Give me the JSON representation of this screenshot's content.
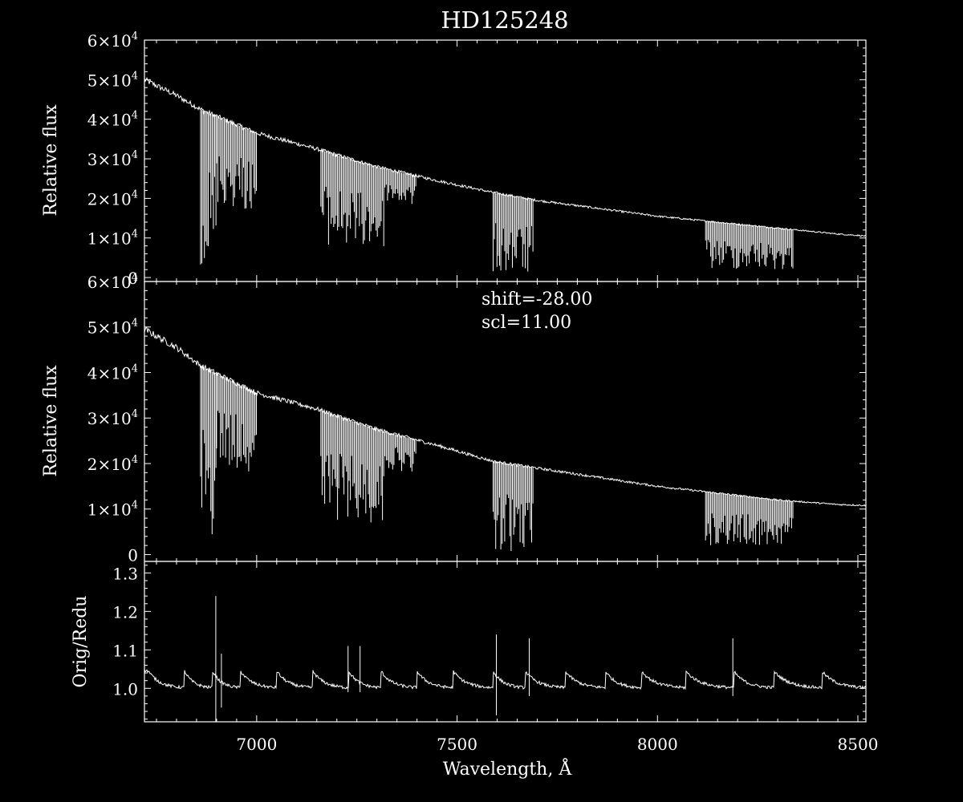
{
  "chart_data": [
    {
      "type": "line",
      "panel": "top",
      "title": "HD125248",
      "ylabel": "Relative flux",
      "xlim": [
        6720,
        8520
      ],
      "ylim": [
        -1000,
        60000
      ],
      "yticks": [
        {
          "value": 0,
          "base": "0",
          "exp": ""
        },
        {
          "value": 10000,
          "base": "1×10",
          "exp": "4"
        },
        {
          "value": 20000,
          "base": "2×10",
          "exp": "4"
        },
        {
          "value": 30000,
          "base": "3×10",
          "exp": "4"
        },
        {
          "value": 40000,
          "base": "4×10",
          "exp": "4"
        },
        {
          "value": 50000,
          "base": "5×10",
          "exp": "4"
        },
        {
          "value": 60000,
          "base": "6×10",
          "exp": "4"
        }
      ],
      "continuum": {
        "x": [
          6720,
          6800,
          6860,
          7000,
          7150,
          7300,
          7450,
          7590,
          7700,
          7850,
          8000,
          8150,
          8300,
          8450,
          8520
        ],
        "y": [
          50000,
          46000,
          42500,
          36500,
          32500,
          28000,
          24500,
          21500,
          19500,
          17500,
          15500,
          14000,
          12500,
          11000,
          10500
        ]
      },
      "absorption_bands": [
        {
          "x": [
            6860,
            6900
          ],
          "depth": 0.94
        },
        {
          "x": [
            6900,
            7000
          ],
          "depth": 0.55
        },
        {
          "x": [
            7160,
            7320
          ],
          "depth": 0.75
        },
        {
          "x": [
            7320,
            7400
          ],
          "depth": 0.3
        },
        {
          "x": [
            7590,
            7690
          ],
          "depth": 0.97
        },
        {
          "x": [
            8120,
            8340
          ],
          "depth": 0.85
        }
      ]
    },
    {
      "type": "line",
      "panel": "middle",
      "ylabel": "Relative flux",
      "xlim": [
        6720,
        8520
      ],
      "ylim": [
        -1500,
        60000
      ],
      "annotations": [
        "shift=-28.00",
        "scl=11.00"
      ],
      "yticks": [
        {
          "value": 0,
          "base": "0",
          "exp": ""
        },
        {
          "value": 10000,
          "base": "1×10",
          "exp": "4"
        },
        {
          "value": 20000,
          "base": "2×10",
          "exp": "4"
        },
        {
          "value": 30000,
          "base": "3×10",
          "exp": "4"
        },
        {
          "value": 40000,
          "base": "4×10",
          "exp": "4"
        },
        {
          "value": 50000,
          "base": "5×10",
          "exp": "4"
        },
        {
          "value": 60000,
          "base": "6×10",
          "exp": "4"
        }
      ],
      "continuum": {
        "x": [
          6720,
          6800,
          6860,
          7000,
          7150,
          7300,
          7450,
          7590,
          7700,
          7850,
          8000,
          8150,
          8300,
          8450,
          8520
        ],
        "y": [
          49500,
          45500,
          41500,
          35500,
          32000,
          27500,
          24000,
          20500,
          19000,
          17000,
          15000,
          13500,
          12000,
          11000,
          10800
        ]
      },
      "absorption_bands": [
        {
          "x": [
            6860,
            6900
          ],
          "depth": 0.9
        },
        {
          "x": [
            6900,
            7000
          ],
          "depth": 0.5
        },
        {
          "x": [
            7160,
            7320
          ],
          "depth": 0.75
        },
        {
          "x": [
            7320,
            7400
          ],
          "depth": 0.3
        },
        {
          "x": [
            7590,
            7690
          ],
          "depth": 0.97
        },
        {
          "x": [
            8120,
            8340
          ],
          "depth": 0.85
        }
      ]
    },
    {
      "type": "line",
      "panel": "bottom",
      "ylabel": "Orig/Redu",
      "xlabel": "Wavelength, Å",
      "xlim": [
        6720,
        8520
      ],
      "ylim": [
        0.913,
        1.33
      ],
      "yticks": [
        {
          "value": 1.0,
          "label": "1.0"
        },
        {
          "value": 1.1,
          "label": "1.1"
        },
        {
          "value": 1.2,
          "label": "1.2"
        },
        {
          "value": 1.3,
          "label": "1.3"
        }
      ],
      "xticks": [
        {
          "value": 7000,
          "label": "7000"
        },
        {
          "value": 7500,
          "label": "7500"
        },
        {
          "value": 8000,
          "label": "8000"
        },
        {
          "value": 8500,
          "label": "8500"
        }
      ],
      "baseline": 1.0,
      "sawtooth_starts": [
        6730,
        6820,
        6890,
        6960,
        7050,
        7140,
        7230,
        7310,
        7400,
        7490,
        7590,
        7670,
        7770,
        7870,
        7960,
        8070,
        8190,
        8290,
        8410
      ],
      "spikes": [
        {
          "x": 6898,
          "top": 1.24,
          "bottom": 0.91
        },
        {
          "x": 6912,
          "top": 1.09,
          "bottom": 0.95
        },
        {
          "x": 7228,
          "top": 1.11,
          "bottom": 0.99
        },
        {
          "x": 7258,
          "top": 1.11,
          "bottom": 0.99
        },
        {
          "x": 7598,
          "top": 1.14,
          "bottom": 0.93
        },
        {
          "x": 7680,
          "top": 1.13,
          "bottom": 0.98
        },
        {
          "x": 8188,
          "top": 1.13,
          "bottom": 0.98
        }
      ]
    }
  ]
}
